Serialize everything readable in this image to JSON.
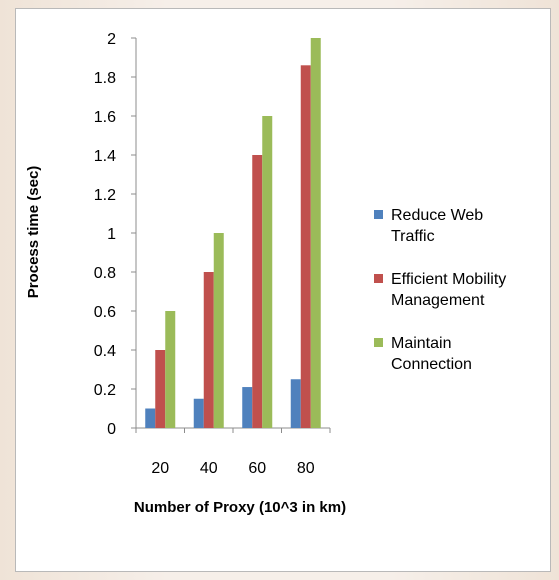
{
  "chart_data": {
    "type": "bar",
    "title": "",
    "xlabel": "Number of Proxy (10^3 in km)",
    "ylabel": "Process time (sec)",
    "categories": [
      "20",
      "40",
      "60",
      "80"
    ],
    "ylim": [
      0,
      2
    ],
    "yticks": [
      "0",
      "0.2",
      "0.4",
      "0.6",
      "0.8",
      "1",
      "1.2",
      "1.4",
      "1.6",
      "1.8",
      "2"
    ],
    "grid": false,
    "legend_position": "right",
    "series": [
      {
        "name": "Reduce Web Traffic",
        "legend_lines": [
          "Reduce Web",
          "Traffic"
        ],
        "color": "#4f81bd",
        "values": [
          0.1,
          0.15,
          0.21,
          0.25
        ]
      },
      {
        "name": "Efficient Mobility Management",
        "legend_lines": [
          "Efficient Mobility",
          "Management"
        ],
        "color": "#c0504d",
        "values": [
          0.4,
          0.8,
          1.4,
          1.86
        ]
      },
      {
        "name": "Maintain Connection",
        "legend_lines": [
          "Maintain",
          "Connection"
        ],
        "color": "#9bbb59",
        "values": [
          0.6,
          1.0,
          1.6,
          2.0
        ]
      }
    ]
  }
}
